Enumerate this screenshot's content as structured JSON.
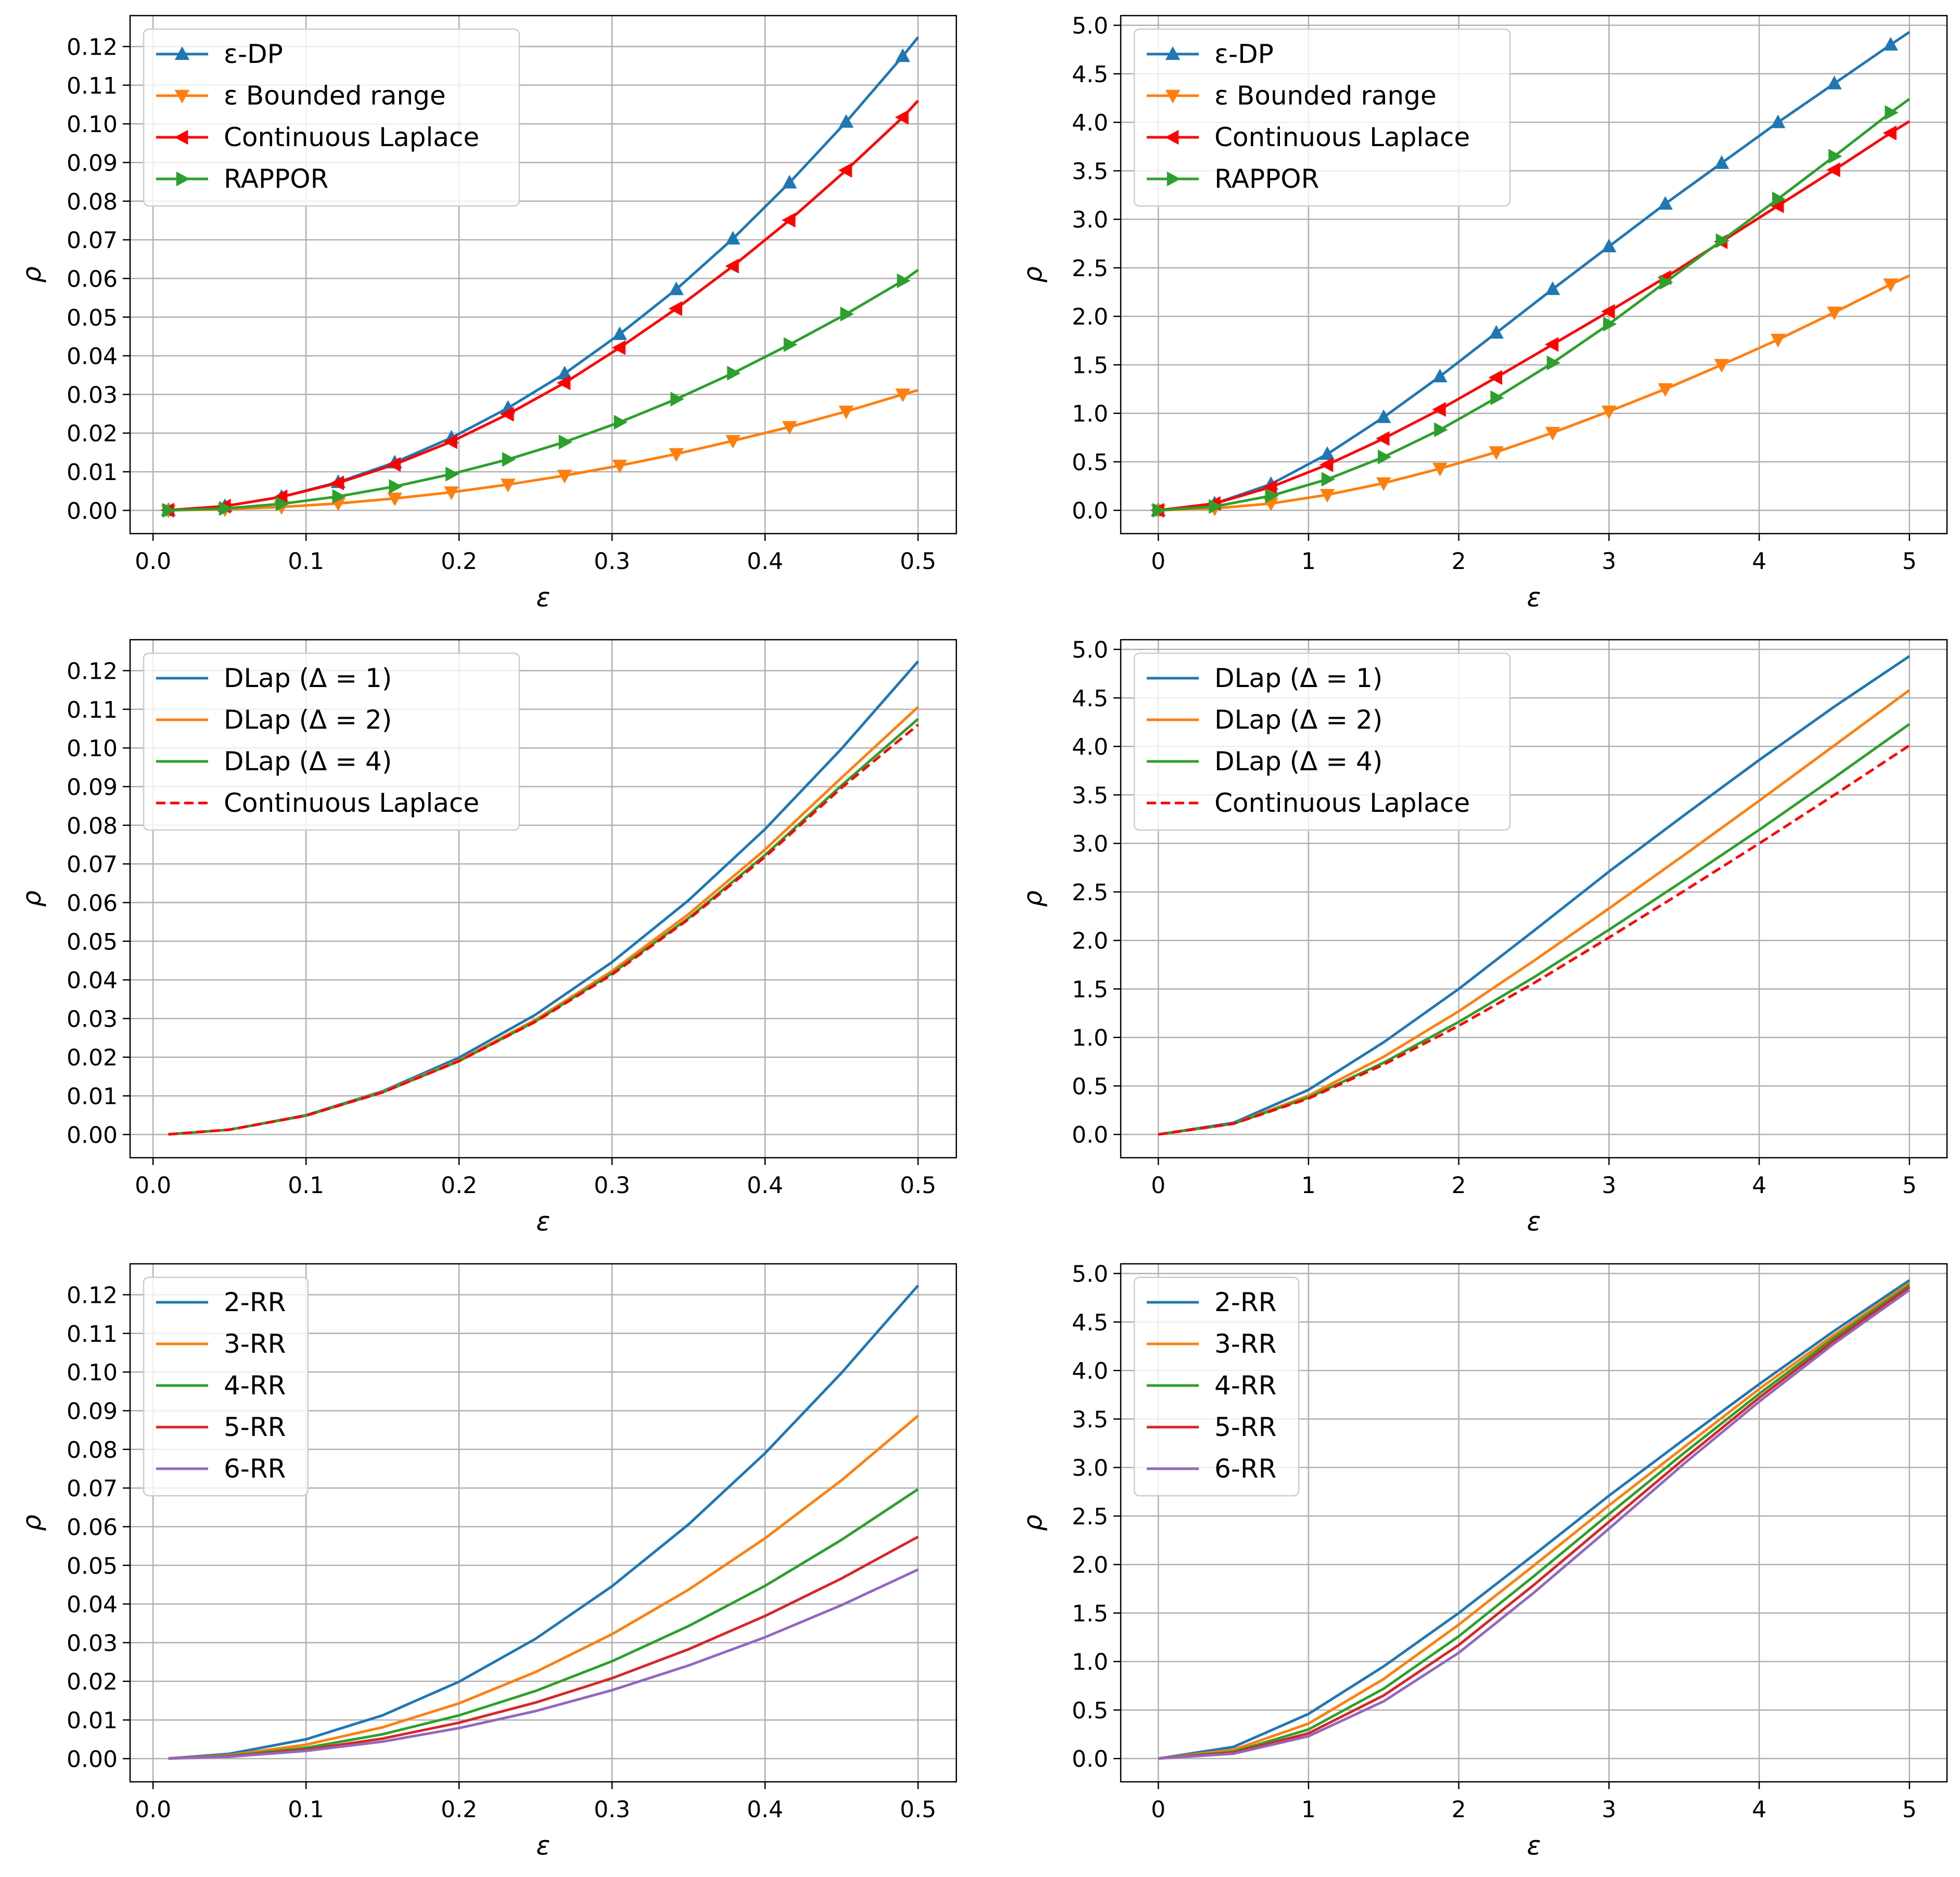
{
  "chart_data": [
    {
      "id": "panel-1",
      "type": "line",
      "xlabel": "ε",
      "ylabel": "ρ",
      "xlim": [
        -0.015,
        0.525
      ],
      "ylim": [
        -0.006,
        0.128
      ],
      "xticks": [
        0.0,
        0.1,
        0.2,
        0.3,
        0.4,
        0.5
      ],
      "xtick_labels": [
        "0.0",
        "0.1",
        "0.2",
        "0.3",
        "0.4",
        "0.5"
      ],
      "yticks": [
        0.0,
        0.01,
        0.02,
        0.03,
        0.04,
        0.05,
        0.06,
        0.07,
        0.08,
        0.09,
        0.1,
        0.11,
        0.12
      ],
      "ytick_labels": [
        "0.00",
        "0.01",
        "0.02",
        "0.03",
        "0.04",
        "0.05",
        "0.06",
        "0.07",
        "0.08",
        "0.09",
        "0.10",
        "0.11",
        "0.12"
      ],
      "grid": true,
      "legend_position": "top-left",
      "x": [
        0.01,
        0.047,
        0.084,
        0.121,
        0.158,
        0.195,
        0.232,
        0.269,
        0.305,
        0.342,
        0.379,
        0.416,
        0.453,
        0.49,
        0.5
      ],
      "series": [
        {
          "name": "ε-DP",
          "color": "#1f77b4",
          "dash": "",
          "marker": "triangle-up",
          "values": [
            5e-05,
            0.0011,
            0.0035,
            0.0073,
            0.0124,
            0.0188,
            0.0265,
            0.0354,
            0.0456,
            0.0572,
            0.0703,
            0.0848,
            0.1005,
            0.1175,
            0.1224
          ]
        },
        {
          "name": "ε Bounded range",
          "color": "#ff7f0e",
          "dash": "",
          "marker": "triangle-down",
          "values": [
            1e-05,
            0.0003,
            0.0009,
            0.0018,
            0.0031,
            0.0047,
            0.0067,
            0.009,
            0.0116,
            0.0146,
            0.018,
            0.0216,
            0.0256,
            0.03,
            0.0311
          ]
        },
        {
          "name": "Continuous Laplace",
          "color": "#ff0000",
          "dash": "",
          "marker": "triangle-left",
          "values": [
            5e-05,
            0.0011,
            0.0035,
            0.0071,
            0.0119,
            0.0178,
            0.0249,
            0.033,
            0.0421,
            0.0522,
            0.0632,
            0.0751,
            0.088,
            0.1017,
            0.106
          ]
        },
        {
          "name": "RAPPOR",
          "color": "#2ca02c",
          "dash": "",
          "marker": "triangle-right",
          "values": [
            2e-05,
            0.0005,
            0.0017,
            0.0036,
            0.0062,
            0.0094,
            0.0132,
            0.0177,
            0.0228,
            0.0288,
            0.0355,
            0.0429,
            0.0508,
            0.0594,
            0.0622
          ]
        }
      ]
    },
    {
      "id": "panel-2",
      "type": "line",
      "xlabel": "ε",
      "ylabel": "ρ",
      "xlim": [
        -0.25,
        5.25
      ],
      "ylim": [
        -0.24,
        5.1
      ],
      "xticks": [
        0,
        1,
        2,
        3,
        4,
        5
      ],
      "xtick_labels": [
        "0",
        "1",
        "2",
        "3",
        "4",
        "5"
      ],
      "yticks": [
        0.0,
        0.5,
        1.0,
        1.5,
        2.0,
        2.5,
        3.0,
        3.5,
        4.0,
        4.5,
        5.0
      ],
      "ytick_labels": [
        "0.0",
        "0.5",
        "1.0",
        "1.5",
        "2.0",
        "2.5",
        "3.0",
        "3.5",
        "4.0",
        "4.5",
        "5.0"
      ],
      "grid": true,
      "legend_position": "top-left",
      "x": [
        0.0,
        0.375,
        0.75,
        1.125,
        1.5,
        1.875,
        2.25,
        2.625,
        3.0,
        3.375,
        3.75,
        4.125,
        4.5,
        4.875,
        5.0
      ],
      "series": [
        {
          "name": "ε-DP",
          "color": "#1f77b4",
          "dash": "",
          "marker": "triangle-up",
          "values": [
            0.0,
            0.07,
            0.27,
            0.58,
            0.96,
            1.38,
            1.83,
            2.28,
            2.72,
            3.16,
            3.58,
            4.0,
            4.4,
            4.8,
            4.93
          ]
        },
        {
          "name": "ε Bounded range",
          "color": "#ff7f0e",
          "dash": "",
          "marker": "triangle-down",
          "values": [
            0.0,
            0.02,
            0.07,
            0.16,
            0.28,
            0.43,
            0.6,
            0.8,
            1.02,
            1.25,
            1.5,
            1.76,
            2.04,
            2.33,
            2.42
          ]
        },
        {
          "name": "Continuous Laplace",
          "color": "#ff0000",
          "dash": "",
          "marker": "triangle-left",
          "values": [
            0.0,
            0.07,
            0.24,
            0.47,
            0.74,
            1.04,
            1.37,
            1.71,
            2.05,
            2.4,
            2.77,
            3.14,
            3.51,
            3.89,
            4.01
          ]
        },
        {
          "name": "RAPPOR",
          "color": "#2ca02c",
          "dash": "",
          "marker": "triangle-right",
          "values": [
            0.0,
            0.04,
            0.15,
            0.32,
            0.55,
            0.83,
            1.16,
            1.52,
            1.92,
            2.35,
            2.78,
            3.21,
            3.65,
            4.1,
            4.24
          ]
        }
      ]
    },
    {
      "id": "panel-3",
      "type": "line",
      "xlabel": "ε",
      "ylabel": "ρ",
      "xlim": [
        -0.015,
        0.525
      ],
      "ylim": [
        -0.006,
        0.128
      ],
      "xticks": [
        0.0,
        0.1,
        0.2,
        0.3,
        0.4,
        0.5
      ],
      "xtick_labels": [
        "0.0",
        "0.1",
        "0.2",
        "0.3",
        "0.4",
        "0.5"
      ],
      "yticks": [
        0.0,
        0.01,
        0.02,
        0.03,
        0.04,
        0.05,
        0.06,
        0.07,
        0.08,
        0.09,
        0.1,
        0.11,
        0.12
      ],
      "ytick_labels": [
        "0.00",
        "0.01",
        "0.02",
        "0.03",
        "0.04",
        "0.05",
        "0.06",
        "0.07",
        "0.08",
        "0.09",
        "0.10",
        "0.11",
        "0.12"
      ],
      "grid": true,
      "legend_position": "top-left",
      "x": [
        0.01,
        0.05,
        0.1,
        0.15,
        0.2,
        0.25,
        0.3,
        0.35,
        0.4,
        0.45,
        0.5
      ],
      "series": [
        {
          "name": "DLap (Δ = 1)",
          "color": "#1f77b4",
          "dash": "",
          "marker": "",
          "values": [
            5e-05,
            0.00125,
            0.005,
            0.0112,
            0.0199,
            0.031,
            0.0446,
            0.0606,
            0.079,
            0.0998,
            0.1224
          ]
        },
        {
          "name": "DLap (Δ = 2)",
          "color": "#ff7f0e",
          "dash": "",
          "marker": "",
          "values": [
            5e-05,
            0.00125,
            0.0049,
            0.011,
            0.0192,
            0.0297,
            0.0423,
            0.057,
            0.0737,
            0.0923,
            0.1106
          ]
        },
        {
          "name": "DLap (Δ = 4)",
          "color": "#2ca02c",
          "dash": "",
          "marker": "",
          "values": [
            5e-05,
            0.00125,
            0.0049,
            0.0109,
            0.019,
            0.0293,
            0.0417,
            0.056,
            0.0723,
            0.0903,
            0.1075
          ]
        },
        {
          "name": "Continuous Laplace",
          "color": "#ff0000",
          "dash": "18,9",
          "marker": "",
          "values": [
            5e-05,
            0.00125,
            0.0049,
            0.0109,
            0.019,
            0.0292,
            0.0414,
            0.0557,
            0.0718,
            0.0897,
            0.106
          ]
        }
      ]
    },
    {
      "id": "panel-4",
      "type": "line",
      "xlabel": "ε",
      "ylabel": "ρ",
      "xlim": [
        -0.25,
        5.25
      ],
      "ylim": [
        -0.24,
        5.1
      ],
      "xticks": [
        0,
        1,
        2,
        3,
        4,
        5
      ],
      "xtick_labels": [
        "0",
        "1",
        "2",
        "3",
        "4",
        "5"
      ],
      "yticks": [
        0.0,
        0.5,
        1.0,
        1.5,
        2.0,
        2.5,
        3.0,
        3.5,
        4.0,
        4.5,
        5.0
      ],
      "ytick_labels": [
        "0.0",
        "0.5",
        "1.0",
        "1.5",
        "2.0",
        "2.5",
        "3.0",
        "3.5",
        "4.0",
        "4.5",
        "5.0"
      ],
      "grid": true,
      "legend_position": "top-left",
      "x": [
        0.0,
        0.5,
        1.0,
        1.5,
        2.0,
        2.5,
        3.0,
        3.5,
        4.0,
        4.5,
        5.0
      ],
      "series": [
        {
          "name": "DLap (Δ = 1)",
          "color": "#1f77b4",
          "dash": "",
          "marker": "",
          "values": [
            0.0,
            0.12,
            0.46,
            0.95,
            1.5,
            2.1,
            2.71,
            3.29,
            3.86,
            4.41,
            4.93
          ]
        },
        {
          "name": "DLap (Δ = 2)",
          "color": "#ff7f0e",
          "dash": "",
          "marker": "",
          "values": [
            0.0,
            0.11,
            0.4,
            0.8,
            1.27,
            1.79,
            2.33,
            2.88,
            3.44,
            4.01,
            4.58
          ]
        },
        {
          "name": "DLap (Δ = 4)",
          "color": "#2ca02c",
          "dash": "",
          "marker": "",
          "values": [
            0.0,
            0.11,
            0.38,
            0.74,
            1.16,
            1.62,
            2.11,
            2.62,
            3.14,
            3.68,
            4.23
          ]
        },
        {
          "name": "Continuous Laplace",
          "color": "#ff0000",
          "dash": "18,9",
          "marker": "",
          "values": [
            0.0,
            0.11,
            0.37,
            0.72,
            1.12,
            1.56,
            2.03,
            2.51,
            3.0,
            3.5,
            4.01
          ]
        }
      ]
    },
    {
      "id": "panel-5",
      "type": "line",
      "xlabel": "ε",
      "ylabel": "ρ",
      "xlim": [
        -0.015,
        0.525
      ],
      "ylim": [
        -0.006,
        0.128
      ],
      "xticks": [
        0.0,
        0.1,
        0.2,
        0.3,
        0.4,
        0.5
      ],
      "xtick_labels": [
        "0.0",
        "0.1",
        "0.2",
        "0.3",
        "0.4",
        "0.5"
      ],
      "yticks": [
        0.0,
        0.01,
        0.02,
        0.03,
        0.04,
        0.05,
        0.06,
        0.07,
        0.08,
        0.09,
        0.1,
        0.11,
        0.12
      ],
      "ytick_labels": [
        "0.00",
        "0.01",
        "0.02",
        "0.03",
        "0.04",
        "0.05",
        "0.06",
        "0.07",
        "0.08",
        "0.09",
        "0.10",
        "0.11",
        "0.12"
      ],
      "grid": true,
      "legend_position": "top-left",
      "x": [
        0.01,
        0.05,
        0.1,
        0.15,
        0.2,
        0.25,
        0.3,
        0.35,
        0.4,
        0.45,
        0.5
      ],
      "series": [
        {
          "name": "2-RR",
          "color": "#1f77b4",
          "dash": "",
          "marker": "",
          "values": [
            5e-05,
            0.00125,
            0.005,
            0.0112,
            0.0199,
            0.031,
            0.0446,
            0.0606,
            0.079,
            0.0998,
            0.1224
          ]
        },
        {
          "name": "3-RR",
          "color": "#ff7f0e",
          "dash": "",
          "marker": "",
          "values": [
            4e-05,
            0.0009,
            0.0036,
            0.0081,
            0.0143,
            0.0224,
            0.0322,
            0.0437,
            0.057,
            0.072,
            0.0887
          ]
        },
        {
          "name": "4-RR",
          "color": "#2ca02c",
          "dash": "",
          "marker": "",
          "values": [
            3e-05,
            0.0007,
            0.0028,
            0.0063,
            0.0112,
            0.0175,
            0.0252,
            0.0343,
            0.0447,
            0.0566,
            0.0697
          ]
        },
        {
          "name": "5-RR",
          "color": "#d62728",
          "dash": "",
          "marker": "",
          "values": [
            2e-05,
            0.0006,
            0.0023,
            0.0052,
            0.0093,
            0.0145,
            0.0208,
            0.0283,
            0.0369,
            0.0466,
            0.0574
          ]
        },
        {
          "name": "6-RR",
          "color": "#9467bd",
          "dash": "",
          "marker": "",
          "values": [
            2e-05,
            0.0005,
            0.002,
            0.0044,
            0.0079,
            0.0123,
            0.0177,
            0.0241,
            0.0314,
            0.0397,
            0.0489
          ]
        }
      ]
    },
    {
      "id": "panel-6",
      "type": "line",
      "xlabel": "ε",
      "ylabel": "ρ",
      "xlim": [
        -0.25,
        5.25
      ],
      "ylim": [
        -0.24,
        5.1
      ],
      "xticks": [
        0,
        1,
        2,
        3,
        4,
        5
      ],
      "xtick_labels": [
        "0",
        "1",
        "2",
        "3",
        "4",
        "5"
      ],
      "yticks": [
        0.0,
        0.5,
        1.0,
        1.5,
        2.0,
        2.5,
        3.0,
        3.5,
        4.0,
        4.5,
        5.0
      ],
      "ytick_labels": [
        "0.0",
        "0.5",
        "1.0",
        "1.5",
        "2.0",
        "2.5",
        "3.0",
        "3.5",
        "4.0",
        "4.5",
        "5.0"
      ],
      "grid": true,
      "legend_position": "top-left",
      "x": [
        0.0,
        0.5,
        1.0,
        1.5,
        2.0,
        2.5,
        3.0,
        3.5,
        4.0,
        4.5,
        5.0
      ],
      "series": [
        {
          "name": "2-RR",
          "color": "#1f77b4",
          "dash": "",
          "marker": "",
          "values": [
            0.0,
            0.12,
            0.46,
            0.95,
            1.5,
            2.1,
            2.71,
            3.29,
            3.86,
            4.41,
            4.93
          ]
        },
        {
          "name": "3-RR",
          "color": "#ff7f0e",
          "dash": "",
          "marker": "",
          "values": [
            0.0,
            0.09,
            0.36,
            0.82,
            1.38,
            1.99,
            2.61,
            3.21,
            3.81,
            4.37,
            4.9
          ]
        },
        {
          "name": "4-RR",
          "color": "#2ca02c",
          "dash": "",
          "marker": "",
          "values": [
            0.0,
            0.07,
            0.3,
            0.72,
            1.26,
            1.88,
            2.52,
            3.15,
            3.76,
            4.34,
            4.88
          ]
        },
        {
          "name": "5-RR",
          "color": "#d62728",
          "dash": "",
          "marker": "",
          "values": [
            0.0,
            0.06,
            0.26,
            0.65,
            1.17,
            1.79,
            2.44,
            3.09,
            3.72,
            4.31,
            4.86
          ]
        },
        {
          "name": "6-RR",
          "color": "#9467bd",
          "dash": "",
          "marker": "",
          "values": [
            0.0,
            0.05,
            0.23,
            0.59,
            1.09,
            1.71,
            2.37,
            3.04,
            3.68,
            4.28,
            4.83
          ]
        }
      ]
    }
  ]
}
